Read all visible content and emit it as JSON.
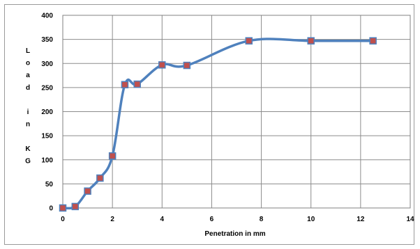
{
  "chart_data": {
    "type": "line",
    "title": "",
    "xlabel": "Penetration in mm",
    "ylabel": "Load in KG",
    "ylabel_chars": [
      "L",
      "o",
      "a",
      "d",
      "",
      "i",
      "n",
      "",
      "K",
      "G"
    ],
    "xlim": [
      0,
      14
    ],
    "ylim": [
      0,
      400
    ],
    "x_ticks": [
      "0",
      "2",
      "4",
      "6",
      "8",
      "10",
      "12",
      "14"
    ],
    "y_ticks": [
      "0",
      "50",
      "100",
      "150",
      "200",
      "250",
      "300",
      "350",
      "400"
    ],
    "grid": true,
    "legend": "none",
    "series": [
      {
        "x": [
          0,
          0.5,
          1,
          1.5,
          2,
          2.5,
          3,
          4,
          5,
          7.5,
          10,
          12.5
        ],
        "values": [
          0,
          3,
          35,
          62,
          108,
          256,
          257,
          297,
          296,
          347,
          347,
          347
        ],
        "line_color": "#4f81bd",
        "marker_color": "#c0504d",
        "marker": "square"
      }
    ]
  }
}
